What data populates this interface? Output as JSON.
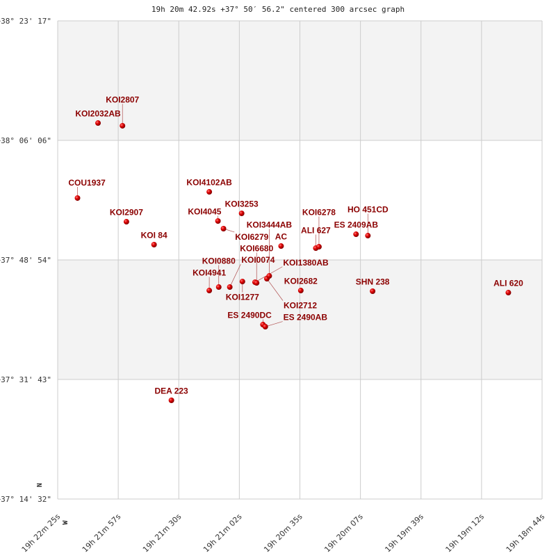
{
  "chart_data": {
    "type": "scatter",
    "title": "19h 20m 42.92s +37° 50′ 56.2\" centered 300 arcsec graph",
    "xlabel": "",
    "ylabel": "",
    "x_units": "right ascension (hours)",
    "y_units": "declination (degrees)",
    "xlim": [
      19.373611,
      19.312222
    ],
    "ylim": [
      37.242222,
      38.388056
    ],
    "x_ticks": [
      "19h 22m 25s",
      "19h 21m 57s",
      "19h 21m 30s",
      "19h 21m 02s",
      "19h 20m 35s",
      "19h 20m 07s",
      "19h 19m 39s",
      "19h 19m 12s",
      "19h 18m 44s"
    ],
    "y_ticks": [
      "+38° 23' 17\"",
      "+38° 06' 06\"",
      "+37° 48' 54\"",
      "+37° 31' 43\"",
      "+37° 14' 32\""
    ],
    "compass": {
      "north": "N",
      "west": "W"
    },
    "grid": true,
    "colors": {
      "point": "#dd0000",
      "label": "#8b0000",
      "band": "#f3f3f3",
      "grid": "#cccccc"
    },
    "points": [
      {
        "name": "KOI2032AB",
        "ra": 19.3685,
        "dec": 38.1432
      },
      {
        "name": "KOI2807",
        "ra": 19.3654,
        "dec": 38.1366
      },
      {
        "name": "COU1937",
        "ra": 19.3711,
        "dec": 37.9634
      },
      {
        "name": "KOI4102AB",
        "ra": 19.3544,
        "dec": 37.9783
      },
      {
        "name": "KOI2907",
        "ra": 19.3649,
        "dec": 37.9067
      },
      {
        "name": "KOI3253",
        "ra": 19.3503,
        "dec": 37.9267
      },
      {
        "name": "KOI4045",
        "ra": 19.3533,
        "dec": 37.9084
      },
      {
        "name": "KOI6279",
        "ra": 19.3526,
        "dec": 37.8901
      },
      {
        "name": "KOI  84",
        "ra": 19.3614,
        "dec": 37.8518
      },
      {
        "name": "AC",
        "ra": 19.3453,
        "dec": 37.8484
      },
      {
        "name": "ALI 627",
        "ra": 19.3409,
        "dec": 37.8434
      },
      {
        "name": "KOI6278",
        "ra": 19.3405,
        "dec": 37.8467
      },
      {
        "name": "ES 2409AB",
        "ra": 19.3358,
        "dec": 37.8767
      },
      {
        "name": "HO 451CD",
        "ra": 19.3343,
        "dec": 37.8734
      },
      {
        "name": "SHN 238",
        "ra": 19.3337,
        "dec": 37.7402
      },
      {
        "name": "ALI 620",
        "ra": 19.3165,
        "dec": 37.7368
      },
      {
        "name": "KOI2682",
        "ra": 19.3428,
        "dec": 37.7418
      },
      {
        "name": "KOI4941",
        "ra": 19.3544,
        "dec": 37.7418
      },
      {
        "name": "KOI0880",
        "ra": 19.3532,
        "dec": 37.7501
      },
      {
        "name": "KOI0074",
        "ra": 19.3518,
        "dec": 37.7501
      },
      {
        "name": "KOI1277",
        "ra": 19.3502,
        "dec": 37.7634
      },
      {
        "name": "KOI1380AB",
        "ra": 19.3486,
        "dec": 37.7617
      },
      {
        "name": "KOI6680",
        "ra": 19.3484,
        "dec": 37.7601
      },
      {
        "name": "KOI2712",
        "ra": 19.3471,
        "dec": 37.7701
      },
      {
        "name": "KOI3444AB",
        "ra": 19.3468,
        "dec": 37.7768
      },
      {
        "name": "ES 2490DC",
        "ra": 19.3476,
        "dec": 37.6602
      },
      {
        "name": "ES 2490AB",
        "ra": 19.3473,
        "dec": 37.6552
      },
      {
        "name": "DEA 223",
        "ra": 19.3592,
        "dec": 37.4787
      }
    ]
  }
}
